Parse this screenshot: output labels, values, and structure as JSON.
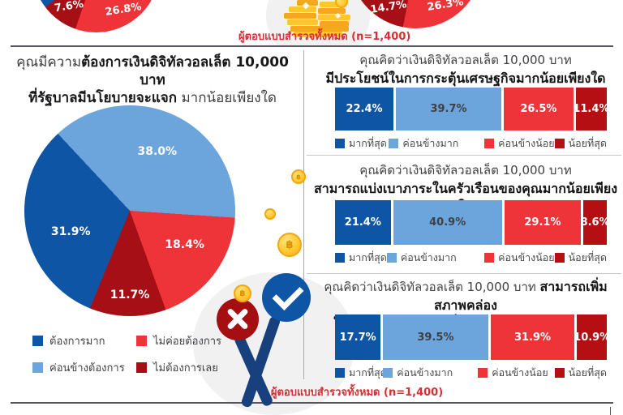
{
  "palette": [
    {
      "key": "most",
      "color": "#0E56A5",
      "label_color": "#FFFFFF"
    },
    {
      "key": "quite",
      "color": "#6BA5DC",
      "label_color": "#3F4043"
    },
    {
      "key": "less",
      "color": "#EE3439",
      "label_color": "#FFFFFF"
    },
    {
      "key": "least",
      "color": "#B50E13",
      "label_color": "#FFFFFF"
    }
  ],
  "top": {
    "left_pie_labels": [
      {
        "text": "7.6%"
      },
      {
        "text": "26.8%"
      }
    ],
    "right_pie_labels": [
      {
        "text": "14.7%"
      },
      {
        "text": "26.3%"
      }
    ],
    "caption": "ผู้ตอบแบบสำรวจทั้งหมด (n=1,400)"
  },
  "left_section": {
    "title": {
      "l1_regular": "คุณมีความ",
      "l1_bold": "ต้องการเงินดิจิทัลวอลเล็ต 10,000 บาท",
      "l2_bold": "ที่รัฐบาลมีนโยบายจะแจก",
      "l2_regular": " มากน้อยเพียงใด"
    },
    "pie": {
      "start_angle": -43,
      "slices": [
        {
          "label": "ค่อนข้างต้องการ",
          "text": "38.0%",
          "value": 38.0,
          "color": "#6BA5DC"
        },
        {
          "label": "ไม่ค่อยต้องการ",
          "text": "18.4%",
          "value": 18.4,
          "color": "#EE3439"
        },
        {
          "label": "ไม่ต้องการเลย",
          "text": "11.7%",
          "value": 11.7,
          "color": "#A50F15"
        },
        {
          "label": "ต้องการมาก",
          "text": "31.9%",
          "value": 31.9,
          "color": "#0E56A5"
        }
      ]
    },
    "legend": [
      {
        "label": "ต้องการมาก",
        "color": "#0E56A5"
      },
      {
        "label": "ค่อนข้างต้องการ",
        "color": "#6BA5DC"
      },
      {
        "label": "ไม่ค่อยต้องการ",
        "color": "#EE3439"
      },
      {
        "label": "ไม่ต้องการเลย",
        "color": "#A50F15"
      }
    ]
  },
  "right_section": {
    "bar_legend": [
      "มากที่สุด",
      "ค่อนข้างมาก",
      "ค่อนข้างน้อย",
      "น้อยที่สุด"
    ],
    "caption": "ผู้ตอบแบบสำรวจทั้งหมด (n=1,400)",
    "charts": [
      {
        "title": {
          "t1_regular": "คุณคิดว่าเงินดิจิทัลวอลเล็ต 10,000 บาท",
          "t1_bold": "",
          "t2_bold": "มีประโยชน์ในการกระตุ้นเศรษฐกิจมากน้อยเพียงใด"
        },
        "segments": [
          {
            "text": "22.4%",
            "value": 22.4
          },
          {
            "text": "39.7%",
            "value": 39.7
          },
          {
            "text": "26.5%",
            "value": 26.5
          },
          {
            "text": "11.4%",
            "value": 11.4
          }
        ]
      },
      {
        "title": {
          "t1_regular": "คุณคิดว่าเงินดิจิทัลวอลเล็ต 10,000 บาท",
          "t1_bold": "",
          "t2_bold": "สามารถแบ่งเบาภาระในครัวเรือนของคุณมากน้อยเพียงใด"
        },
        "segments": [
          {
            "text": "21.4%",
            "value": 21.4
          },
          {
            "text": "40.9%",
            "value": 40.9
          },
          {
            "text": "29.1%",
            "value": 29.1
          },
          {
            "text": "8.6%",
            "value": 8.6
          }
        ]
      },
      {
        "title": {
          "t1_regular": "คุณคิดว่าเงินดิจิทัลวอลเล็ต 10,000 บาท ",
          "t1_bold": "สามารถเพิ่มสภาพคล่อง",
          "t2_bold": "ให้แก่ร้านค้ารายย่อยทั่วประเทศมากน้อยเพียงใด"
        },
        "segments": [
          {
            "text": "17.7%",
            "value": 17.7
          },
          {
            "text": "39.5%",
            "value": 39.5
          },
          {
            "text": "31.9%",
            "value": 31.9
          },
          {
            "text": "10.9%",
            "value": 10.9
          }
        ]
      }
    ]
  },
  "chart_data": [
    {
      "type": "pie",
      "title": "คุณมีความต้องการเงินดิจิทัลวอลเล็ต 10,000 บาท ที่รัฐบาลมีนโยบายจะแจก มากน้อยเพียงใด",
      "categories": [
        "ต้องการมาก",
        "ค่อนข้างต้องการ",
        "ไม่ค่อยต้องการ",
        "ไม่ต้องการเลย"
      ],
      "values": [
        31.9,
        38.0,
        18.4,
        11.7
      ],
      "unit": "%",
      "sample_note": "ผู้ตอบแบบสำรวจทั้งหมด (n=1,400)"
    },
    {
      "type": "bar",
      "stacked": true,
      "orientation": "horizontal",
      "title": "คุณคิดว่าเงินดิจิทัลวอลเล็ต 10,000 บาท มีประโยชน์ในการกระตุ้นเศรษฐกิจมากน้อยเพียงใด",
      "categories": [
        "มากที่สุด",
        "ค่อนข้างมาก",
        "ค่อนข้างน้อย",
        "น้อยที่สุด"
      ],
      "values": [
        22.4,
        39.7,
        26.5,
        11.4
      ],
      "unit": "%"
    },
    {
      "type": "bar",
      "stacked": true,
      "orientation": "horizontal",
      "title": "คุณคิดว่าเงินดิจิทัลวอลเล็ต 10,000 บาท สามารถแบ่งเบาภาระในครัวเรือนของคุณมากน้อยเพียงใด",
      "categories": [
        "มากที่สุด",
        "ค่อนข้างมาก",
        "ค่อนข้างน้อย",
        "น้อยที่สุด"
      ],
      "values": [
        21.4,
        40.9,
        29.1,
        8.6
      ],
      "unit": "%"
    },
    {
      "type": "bar",
      "stacked": true,
      "orientation": "horizontal",
      "title": "คุณคิดว่าเงินดิจิทัลวอลเล็ต 10,000 บาท สามารถเพิ่มสภาพคล่องให้แก่ร้านค้ารายย่อยทั่วประเทศมากน้อยเพียงใด",
      "categories": [
        "มากที่สุด",
        "ค่อนข้างมาก",
        "ค่อนข้างน้อย",
        "น้อยที่สุด"
      ],
      "values": [
        17.7,
        39.5,
        31.9,
        10.9
      ],
      "unit": "%"
    },
    {
      "type": "pie",
      "title": "pie cropped at top-left of image (partially visible)",
      "visible_labels": [
        "7.6%",
        "26.8%"
      ],
      "values": [
        7.6,
        26.8
      ],
      "unit": "%"
    },
    {
      "type": "pie",
      "title": "pie cropped at top-right of image (partially visible)",
      "visible_labels": [
        "14.7%",
        "26.3%"
      ],
      "values": [
        14.7,
        26.3
      ],
      "unit": "%"
    }
  ]
}
